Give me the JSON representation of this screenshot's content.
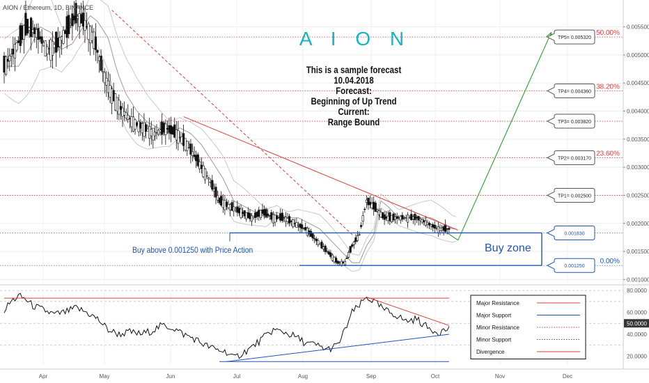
{
  "header": {
    "symbol_label": "AION / Ethereum, 1D, BINANCE",
    "brand_title": "A I O N",
    "forecast_lines": [
      "This is a sample forecast",
      "10.04.2018",
      "Forecast:",
      "Beginning of Up Trend",
      "Current:",
      "Range Bound"
    ]
  },
  "annotations": {
    "buy_above": "Buy above 0.001250 with Price Action",
    "buy_zone": "Buy zone"
  },
  "colors": {
    "resistance": "#e23b3b",
    "support": "#1f54b8",
    "forecast_arrow": "#3aa63a",
    "brand": "#16b5c0",
    "candle": "#111111"
  },
  "chart_data": [
    {
      "type": "candlestick",
      "title": "",
      "x_ticks": [
        "Apr",
        "May",
        "Jun",
        "Jul",
        "Aug",
        "Sep",
        "Oct",
        "Nov",
        "Dec"
      ],
      "y_ticks": [
        "0.001000",
        "0.001500",
        "0.002000",
        "0.002500",
        "0.003000",
        "0.003500",
        "0.004000",
        "0.004500",
        "0.005000",
        "0.005500"
      ],
      "y_tick_values": [
        0.001,
        0.0015,
        0.002,
        0.0025,
        0.003,
        0.0035,
        0.004,
        0.0045,
        0.005,
        0.0055
      ],
      "ylim": [
        0.00093,
        0.00588
      ],
      "timeline": [
        0,
        271
      ],
      "price_path": [
        [
          0,
          0.0048
        ],
        [
          6,
          0.0051
        ],
        [
          12,
          0.0055
        ],
        [
          18,
          0.0054
        ],
        [
          24,
          0.0051
        ],
        [
          30,
          0.0052
        ],
        [
          36,
          0.0055
        ],
        [
          40,
          0.0057
        ],
        [
          44,
          0.0056
        ],
        [
          50,
          0.0053
        ],
        [
          55,
          0.0047
        ],
        [
          60,
          0.0043
        ],
        [
          66,
          0.004
        ],
        [
          72,
          0.0038
        ],
        [
          78,
          0.0037
        ],
        [
          84,
          0.0036
        ],
        [
          90,
          0.0037
        ],
        [
          96,
          0.0036
        ],
        [
          102,
          0.0034
        ],
        [
          108,
          0.0031
        ],
        [
          114,
          0.0028
        ],
        [
          120,
          0.0024
        ],
        [
          126,
          0.0023
        ],
        [
          132,
          0.0022
        ],
        [
          138,
          0.0021
        ],
        [
          144,
          0.0022
        ],
        [
          150,
          0.0021
        ],
        [
          156,
          0.0021
        ],
        [
          162,
          0.002
        ],
        [
          168,
          0.0019
        ],
        [
          174,
          0.0017
        ],
        [
          180,
          0.0015
        ],
        [
          186,
          0.0013
        ],
        [
          190,
          0.0013
        ],
        [
          194,
          0.0016
        ],
        [
          198,
          0.0018
        ],
        [
          202,
          0.0024
        ],
        [
          206,
          0.0023
        ],
        [
          212,
          0.0021
        ],
        [
          218,
          0.0021
        ],
        [
          224,
          0.0021
        ],
        [
          230,
          0.0021
        ],
        [
          236,
          0.002
        ],
        [
          242,
          0.0019
        ],
        [
          248,
          0.0019
        ]
      ],
      "price_lines": [
        {
          "label": "TP5= 0.005320",
          "value": 0.00532,
          "fib_label": "50.00%",
          "style": "dotted-red"
        },
        {
          "label": "TP4= 0.004360",
          "value": 0.00436,
          "fib_label": "38.20%",
          "style": "dotted-red"
        },
        {
          "label": "TP3= 0.003820",
          "value": 0.00382,
          "fib_label": "",
          "style": "dotted-red"
        },
        {
          "label": "TP2= 0.003170",
          "value": 0.00317,
          "fib_label": "23.60%",
          "style": "dotted-red"
        },
        {
          "label": "TP1= 0.002500",
          "value": 0.0025,
          "fib_label": "",
          "style": "dotted-red"
        },
        {
          "label": "0.001830",
          "value": 0.00183,
          "fib_label": "",
          "style": "solid-blue"
        },
        {
          "label": "0.001250",
          "value": 0.00125,
          "fib_label": "0.00%",
          "style": "solid-blue"
        }
      ],
      "trendlines": [
        {
          "name": "descending-resistance",
          "from": [
            100,
            0.0039
          ],
          "to": [
            253,
            0.00188
          ],
          "color": "#e23b3b"
        },
        {
          "name": "dashed-downtrend",
          "from": [
            60,
            0.0058
          ],
          "to": [
            195,
            0.00177
          ],
          "color": "#e23b3b",
          "dashed": true
        },
        {
          "name": "forecast-arrow",
          "from": [
            253,
            0.0017
          ],
          "to": [
            305,
            0.0054
          ],
          "color": "#3aa63a"
        }
      ]
    },
    {
      "type": "line",
      "title": "",
      "y_ticks": [
        "80.0000",
        "60.0000",
        "50.0000",
        "40.0000",
        "20.0000"
      ],
      "y_tick_values": [
        80,
        60,
        50,
        40,
        20
      ],
      "ylim": [
        12,
        82
      ],
      "rsi_path": [
        [
          0,
          62
        ],
        [
          4,
          70
        ],
        [
          8,
          75
        ],
        [
          12,
          72
        ],
        [
          16,
          66
        ],
        [
          22,
          62
        ],
        [
          28,
          58
        ],
        [
          34,
          60
        ],
        [
          40,
          64
        ],
        [
          46,
          60
        ],
        [
          52,
          54
        ],
        [
          58,
          44
        ],
        [
          64,
          40
        ],
        [
          70,
          42
        ],
        [
          76,
          40
        ],
        [
          82,
          43
        ],
        [
          88,
          48
        ],
        [
          94,
          46
        ],
        [
          100,
          40
        ],
        [
          106,
          36
        ],
        [
          112,
          30
        ],
        [
          118,
          26
        ],
        [
          124,
          24
        ],
        [
          128,
          18
        ],
        [
          132,
          22
        ],
        [
          138,
          28
        ],
        [
          144,
          36
        ],
        [
          150,
          44
        ],
        [
          156,
          42
        ],
        [
          162,
          38
        ],
        [
          168,
          32
        ],
        [
          174,
          30
        ],
        [
          180,
          26
        ],
        [
          186,
          30
        ],
        [
          190,
          44
        ],
        [
          194,
          60
        ],
        [
          198,
          66
        ],
        [
          202,
          74
        ],
        [
          206,
          70
        ],
        [
          212,
          62
        ],
        [
          218,
          58
        ],
        [
          224,
          52
        ],
        [
          230,
          54
        ],
        [
          236,
          46
        ],
        [
          242,
          42
        ],
        [
          248,
          45
        ]
      ],
      "levels": [
        {
          "name": "major-resistance",
          "value": 73,
          "from": 0,
          "to": 248,
          "color": "#e23b3b"
        },
        {
          "name": "major-support",
          "value": 15,
          "from": 120,
          "to": 248,
          "color": "#1f54b8"
        }
      ],
      "trendlines": [
        {
          "name": "rsi-support",
          "from": [
            124,
            15
          ],
          "to": [
            248,
            40
          ],
          "color": "#1f54b8"
        },
        {
          "name": "rsi-divergence",
          "from": [
            202,
            74
          ],
          "to": [
            248,
            48
          ],
          "color": "#e23b3b"
        }
      ],
      "legend": {
        "placement": "top-right",
        "entries": [
          {
            "label": "Major Resistance",
            "color": "#e23b3b",
            "style": "solid"
          },
          {
            "label": "Major Support",
            "color": "#1f54b8",
            "style": "solid"
          },
          {
            "label": "Minor Resistance",
            "color": "#e23b3b",
            "style": "dotted"
          },
          {
            "label": "Minor Support",
            "color": "#1f54b8",
            "style": "dotted"
          },
          {
            "label": "Divergence",
            "color": "#e23b3b",
            "style": "solid"
          }
        ]
      }
    }
  ]
}
